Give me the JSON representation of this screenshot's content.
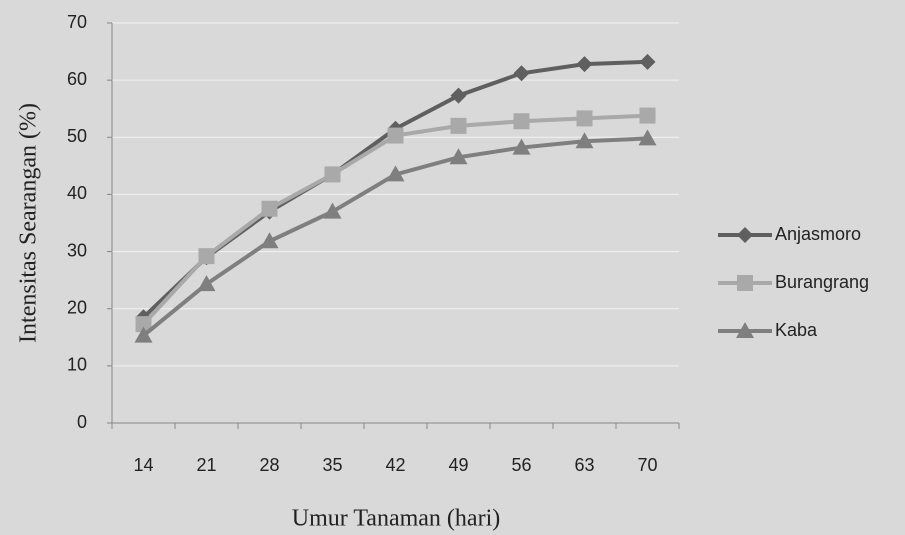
{
  "chart_data": {
    "type": "line",
    "x_label": "Umur Tanaman (hari)",
    "y_label": "Intensitas Searangan (%)",
    "categories": [
      "14",
      "21",
      "28",
      "35",
      "42",
      "49",
      "56",
      "63",
      "70"
    ],
    "series": [
      {
        "name": "Anjasmoro",
        "color": "#5f5f5f",
        "marker": "diamond",
        "values": [
          18.5,
          29,
          37,
          43.5,
          51.5,
          57.3,
          61.2,
          62.8,
          63.2
        ]
      },
      {
        "name": "Burangrang",
        "color": "#a9a9a9",
        "marker": "square",
        "values": [
          17.3,
          29.2,
          37.5,
          43.5,
          50.3,
          52,
          52.8,
          53.3,
          53.8
        ]
      },
      {
        "name": "Kaba",
        "color": "#7f7f7f",
        "marker": "triangle",
        "values": [
          15.3,
          24.3,
          31.8,
          37,
          43.5,
          46.5,
          48.2,
          49.3,
          49.8
        ]
      }
    ],
    "ylim": [
      0,
      70
    ],
    "yticks": [
      0,
      10,
      20,
      30,
      40,
      50,
      60,
      70
    ],
    "grid": true,
    "legend": "right"
  }
}
